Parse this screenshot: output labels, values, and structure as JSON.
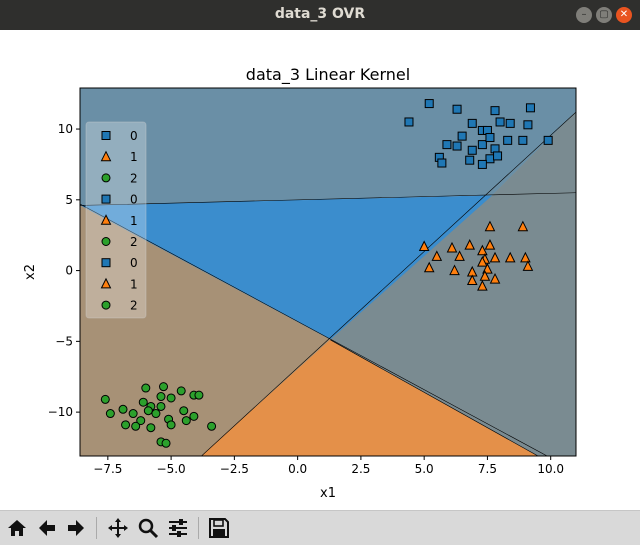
{
  "window": {
    "title": "data_3 OVR",
    "controls": [
      "minimize-icon",
      "maximize-icon",
      "close-icon"
    ]
  },
  "chart_data": {
    "type": "scatter",
    "title": "data_3 Linear Kernel",
    "xlabel": "x1",
    "ylabel": "x2",
    "xlim": [
      -8.6,
      11.0
    ],
    "ylim": [
      -13.1,
      12.9
    ],
    "xticks": [
      "−7.5",
      "−5.0",
      "−2.5",
      "0.0",
      "2.5",
      "5.0",
      "7.5",
      "10.0"
    ],
    "xtick_values": [
      -7.5,
      -5.0,
      -2.5,
      0.0,
      2.5,
      5.0,
      7.5,
      10.0
    ],
    "yticks": [
      "−10",
      "−5",
      "0",
      "5",
      "10"
    ],
    "ytick_values": [
      -10,
      -5,
      0,
      5,
      10
    ],
    "grid": false,
    "legend_position": "top-left",
    "legend": [
      {
        "label": "0",
        "marker": "square",
        "color": "#1f77b4"
      },
      {
        "label": "1",
        "marker": "triangle",
        "color": "#ff7f0e"
      },
      {
        "label": "2",
        "marker": "circle",
        "color": "#2ca02c"
      },
      {
        "label": "0",
        "marker": "square",
        "color": "#1f77b4"
      },
      {
        "label": "1",
        "marker": "triangle",
        "color": "#ff7f0e"
      },
      {
        "label": "2",
        "marker": "circle",
        "color": "#2ca02c"
      },
      {
        "label": "0",
        "marker": "square",
        "color": "#1f77b4"
      },
      {
        "label": "1",
        "marker": "triangle",
        "color": "#ff7f0e"
      },
      {
        "label": "2",
        "marker": "circle",
        "color": "#2ca02c"
      }
    ],
    "decision_regions": [
      {
        "class": "0 (top)",
        "color": "#6a8fa6",
        "polygon": [
          [
            -8.6,
            12.9
          ],
          [
            11.0,
            12.9
          ],
          [
            11.0,
            5.5
          ],
          [
            -8.6,
            4.6
          ]
        ]
      },
      {
        "class": "0 (center)",
        "color": "#3b8dcd",
        "polygon": [
          [
            -8.6,
            4.6
          ],
          [
            7.7,
            5.3
          ],
          [
            1.3,
            -4.9
          ],
          [
            -8.6,
            4.6
          ]
        ]
      },
      {
        "class": "left",
        "color": "#a79176",
        "polygon": [
          [
            -8.6,
            4.6
          ],
          [
            1.3,
            -4.9
          ],
          [
            -3.8,
            -13.1
          ],
          [
            -8.6,
            -13.1
          ]
        ]
      },
      {
        "class": "1",
        "color": "#e49049",
        "polygon": [
          [
            1.3,
            -4.9
          ],
          [
            9.5,
            -13.1
          ],
          [
            -3.8,
            -13.1
          ]
        ]
      },
      {
        "class": "right-top",
        "color": "#a39783",
        "polygon": [
          [
            7.7,
            5.3
          ],
          [
            11.0,
            5.5
          ],
          [
            11.0,
            11.2
          ]
        ]
      },
      {
        "class": "right",
        "color": "#7a8b91",
        "polygon": [
          [
            7.7,
            5.3
          ],
          [
            11.0,
            11.2
          ],
          [
            11.0,
            -13.1
          ],
          [
            9.5,
            -13.1
          ],
          [
            1.3,
            -4.9
          ]
        ]
      }
    ],
    "boundary_lines": [
      [
        [
          -8.6,
          4.6
        ],
        [
          11.0,
          5.5
        ]
      ],
      [
        [
          -8.6,
          4.7
        ],
        [
          11.0,
          -14.2
        ]
      ],
      [
        [
          -3.8,
          -13.1
        ],
        [
          11.0,
          11.2
        ]
      ],
      [
        [
          1.3,
          -4.9
        ],
        [
          9.5,
          -13.1
        ]
      ]
    ],
    "series": [
      {
        "name": "0",
        "marker": "square",
        "color": "#1f77b4",
        "points": [
          [
            4.4,
            10.5
          ],
          [
            5.2,
            11.8
          ],
          [
            6.3,
            11.4
          ],
          [
            7.8,
            11.3
          ],
          [
            9.2,
            11.5
          ],
          [
            5.9,
            8.9
          ],
          [
            6.5,
            9.5
          ],
          [
            6.9,
            10.4
          ],
          [
            7.3,
            9.9
          ],
          [
            7.5,
            9.9
          ],
          [
            8.0,
            10.5
          ],
          [
            8.4,
            10.4
          ],
          [
            9.1,
            10.3
          ],
          [
            6.3,
            8.8
          ],
          [
            6.9,
            8.5
          ],
          [
            7.3,
            8.9
          ],
          [
            7.6,
            9.4
          ],
          [
            7.8,
            8.6
          ],
          [
            8.3,
            9.2
          ],
          [
            8.9,
            9.2
          ],
          [
            9.9,
            9.2
          ],
          [
            5.6,
            8.0
          ],
          [
            5.7,
            7.6
          ],
          [
            6.8,
            7.8
          ],
          [
            7.6,
            7.9
          ],
          [
            7.9,
            8.1
          ],
          [
            7.3,
            7.5
          ]
        ]
      },
      {
        "name": "1",
        "marker": "triangle",
        "color": "#ff7f0e",
        "points": [
          [
            7.6,
            3.1
          ],
          [
            8.9,
            3.1
          ],
          [
            5.0,
            1.7
          ],
          [
            6.1,
            1.6
          ],
          [
            6.8,
            1.8
          ],
          [
            7.3,
            1.4
          ],
          [
            7.6,
            1.8
          ],
          [
            5.5,
            1.0
          ],
          [
            6.4,
            1.0
          ],
          [
            7.4,
            0.8
          ],
          [
            7.8,
            0.9
          ],
          [
            8.4,
            0.9
          ],
          [
            9.0,
            0.9
          ],
          [
            7.3,
            0.6
          ],
          [
            7.5,
            0.1
          ],
          [
            9.1,
            0.3
          ],
          [
            5.2,
            0.2
          ],
          [
            6.2,
            0.0
          ],
          [
            6.9,
            -0.1
          ],
          [
            7.4,
            -0.4
          ],
          [
            6.9,
            -0.7
          ],
          [
            7.8,
            -0.6
          ],
          [
            7.3,
            -1.1
          ]
        ]
      },
      {
        "name": "2",
        "marker": "circle",
        "color": "#2ca02c",
        "points": [
          [
            -5.3,
            -8.2
          ],
          [
            -6.0,
            -8.3
          ],
          [
            -7.6,
            -9.1
          ],
          [
            -5.4,
            -8.9
          ],
          [
            -5.0,
            -9.0
          ],
          [
            -4.6,
            -8.5
          ],
          [
            -4.1,
            -8.8
          ],
          [
            -3.9,
            -8.8
          ],
          [
            -6.1,
            -9.3
          ],
          [
            -5.8,
            -9.6
          ],
          [
            -5.4,
            -9.6
          ],
          [
            -6.9,
            -9.8
          ],
          [
            -5.9,
            -9.9
          ],
          [
            -4.5,
            -9.9
          ],
          [
            -7.4,
            -10.1
          ],
          [
            -6.5,
            -10.1
          ],
          [
            -5.6,
            -10.1
          ],
          [
            -4.1,
            -10.3
          ],
          [
            -6.2,
            -10.6
          ],
          [
            -5.1,
            -10.5
          ],
          [
            -4.4,
            -10.6
          ],
          [
            -6.8,
            -10.9
          ],
          [
            -6.4,
            -11.0
          ],
          [
            -5.8,
            -11.1
          ],
          [
            -5.0,
            -10.9
          ],
          [
            -3.4,
            -11.0
          ],
          [
            -5.4,
            -12.1
          ],
          [
            -5.2,
            -12.2
          ]
        ]
      }
    ]
  },
  "toolbar": {
    "buttons": [
      "home-icon",
      "back-arrow-icon",
      "forward-arrow-icon",
      "pan-icon",
      "zoom-icon",
      "configure-subplots-icon",
      "save-icon"
    ]
  }
}
